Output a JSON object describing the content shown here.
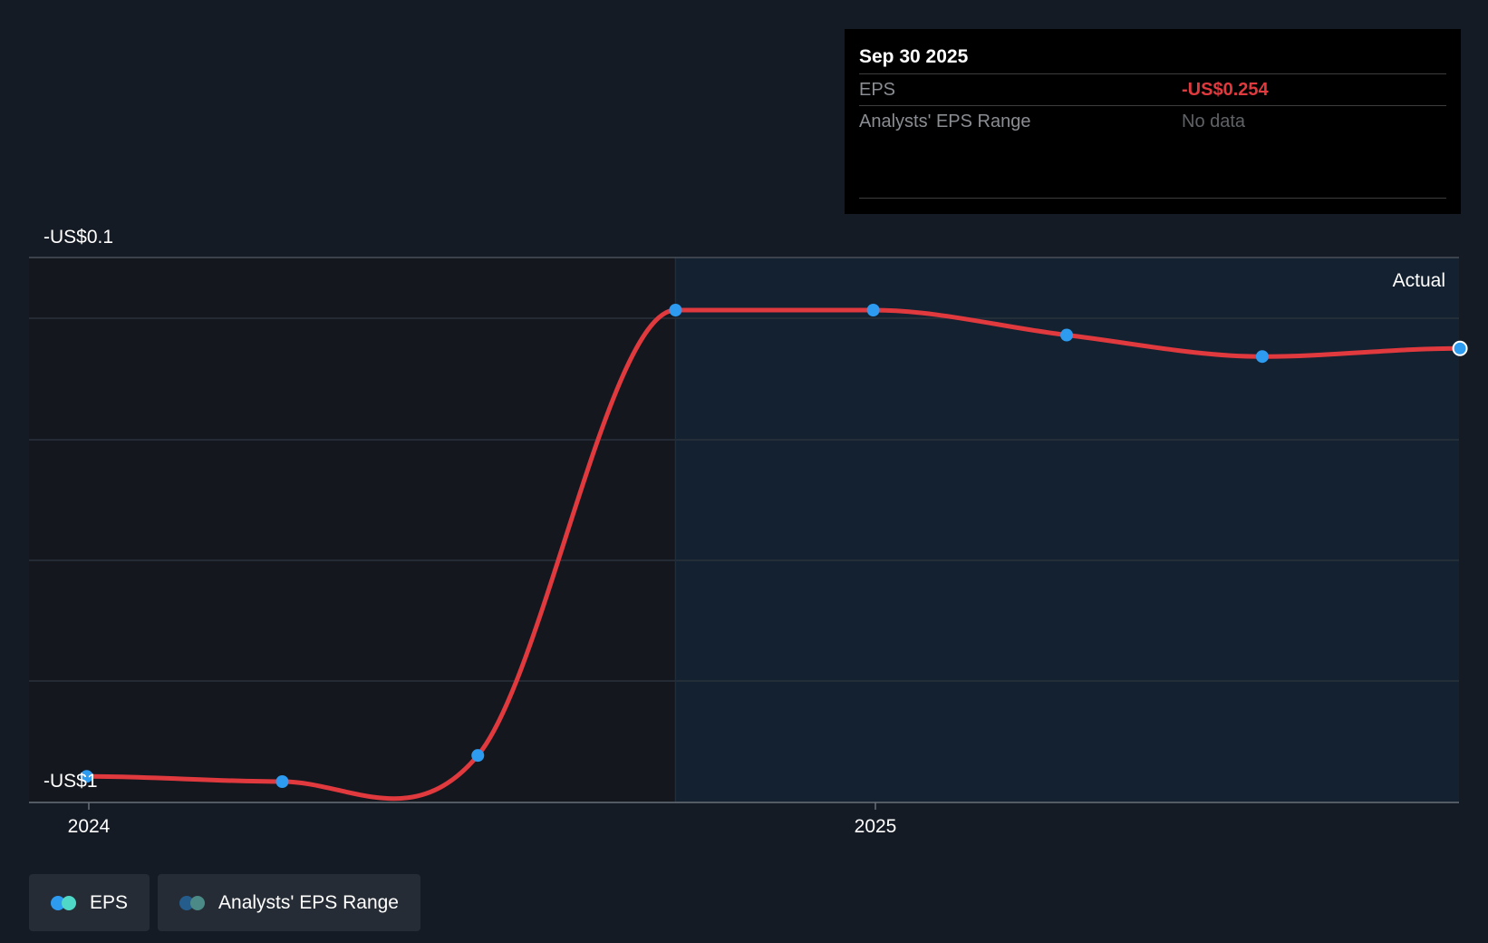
{
  "chart_data": {
    "type": "line",
    "ylabel_top": "-US$0.1",
    "ylabel_bottom": "-US$1",
    "x_ticks": [
      "2024",
      "2025"
    ],
    "region_label": "Actual",
    "series": [
      {
        "name": "EPS",
        "color": "#e0393e",
        "points": [
          {
            "date": "2023-12-31",
            "value": -0.991
          },
          {
            "date": "2024-03-31",
            "value": -1.0
          },
          {
            "date": "2024-06-30",
            "value": -0.955
          },
          {
            "date": "2024-09-30",
            "value": -0.188
          },
          {
            "date": "2024-12-31",
            "value": -0.188
          },
          {
            "date": "2025-03-31",
            "value": -0.231
          },
          {
            "date": "2025-06-30",
            "value": -0.268
          },
          {
            "date": "2025-09-30",
            "value": -0.254
          }
        ]
      }
    ],
    "ylim": [
      -1.0,
      -0.1
    ],
    "grid": true
  },
  "tooltip": {
    "date": "Sep 30 2025",
    "rows": [
      {
        "label": "EPS",
        "value": "-US$0.254"
      },
      {
        "label": "Analysts' EPS Range",
        "value": "No data"
      }
    ]
  },
  "legend": [
    {
      "label": "EPS",
      "colors": [
        "#2d9bf0",
        "#4fd8c7"
      ]
    },
    {
      "label": "Analysts' EPS Range",
      "colors": [
        "#245d8c",
        "#4b8a86"
      ]
    }
  ],
  "colors": {
    "background": "#151b24",
    "forecast_bg": "#132131",
    "past_bg": "#14171e",
    "point": "#2d9bf0"
  }
}
